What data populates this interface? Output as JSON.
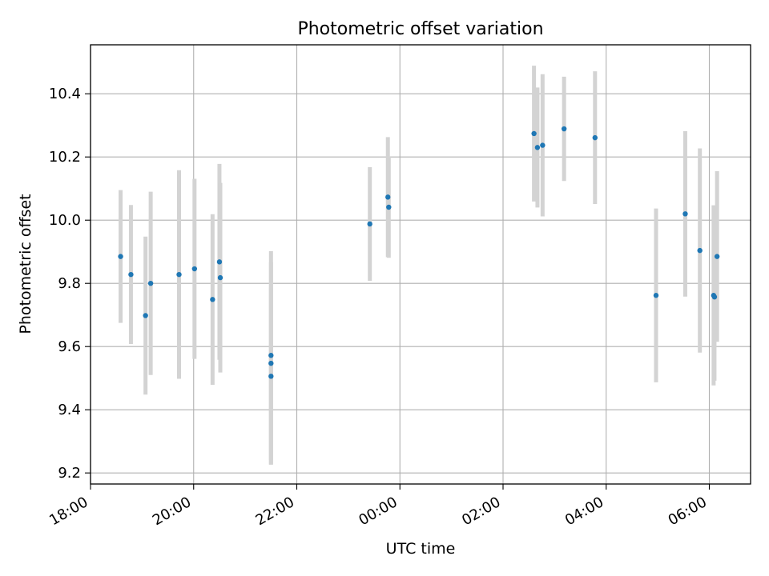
{
  "chart_data": {
    "type": "scatter",
    "title": "Photometric offset variation",
    "xlabel": "UTC time",
    "ylabel": "Photometric offset",
    "x_ticks": [
      "18:00",
      "20:00",
      "22:00",
      "00:00",
      "02:00",
      "04:00",
      "06:00"
    ],
    "y_ticks": [
      "9.2",
      "9.4",
      "9.6",
      "9.8",
      "10.0",
      "10.2",
      "10.4"
    ],
    "xlim": [
      "18:00",
      "06:48"
    ],
    "ylim": [
      9.165,
      10.555
    ],
    "grid": true,
    "point_color": "#1f77b4",
    "errorbar_color": "#d3d3d3",
    "points": [
      {
        "x": "18:35",
        "y": 9.885,
        "err": 0.21
      },
      {
        "x": "18:47",
        "y": 9.828,
        "err": 0.22
      },
      {
        "x": "19:04",
        "y": 9.698,
        "err": 0.25
      },
      {
        "x": "19:10",
        "y": 9.8,
        "err": 0.29
      },
      {
        "x": "19:43",
        "y": 9.828,
        "err": 0.33
      },
      {
        "x": "20:01",
        "y": 9.846,
        "err": 0.285
      },
      {
        "x": "20:22",
        "y": 9.749,
        "err": 0.27
      },
      {
        "x": "20:30",
        "y": 9.868,
        "err": 0.31
      },
      {
        "x": "20:31",
        "y": 9.818,
        "err": 0.3
      },
      {
        "x": "21:30",
        "y": 9.572,
        "err": 0.33
      },
      {
        "x": "21:30",
        "y": 9.547,
        "err": 0.32
      },
      {
        "x": "21:30",
        "y": 9.506,
        "err": 0.28
      },
      {
        "x": "23:25",
        "y": 9.988,
        "err": 0.18
      },
      {
        "x": "23:46",
        "y": 10.073,
        "err": 0.19
      },
      {
        "x": "23:47",
        "y": 10.041,
        "err": 0.16
      },
      {
        "x": "02:36",
        "y": 10.274,
        "err": 0.215
      },
      {
        "x": "02:40",
        "y": 10.23,
        "err": 0.19
      },
      {
        "x": "02:46",
        "y": 10.237,
        "err": 0.225
      },
      {
        "x": "03:11",
        "y": 10.289,
        "err": 0.165
      },
      {
        "x": "03:47",
        "y": 10.261,
        "err": 0.21
      },
      {
        "x": "04:58",
        "y": 9.762,
        "err": 0.275
      },
      {
        "x": "05:32",
        "y": 10.02,
        "err": 0.262
      },
      {
        "x": "05:49",
        "y": 9.904,
        "err": 0.323
      },
      {
        "x": "06:05",
        "y": 9.762,
        "err": 0.285
      },
      {
        "x": "06:06",
        "y": 9.757,
        "err": 0.265
      },
      {
        "x": "06:09",
        "y": 9.885,
        "err": 0.27
      }
    ]
  }
}
